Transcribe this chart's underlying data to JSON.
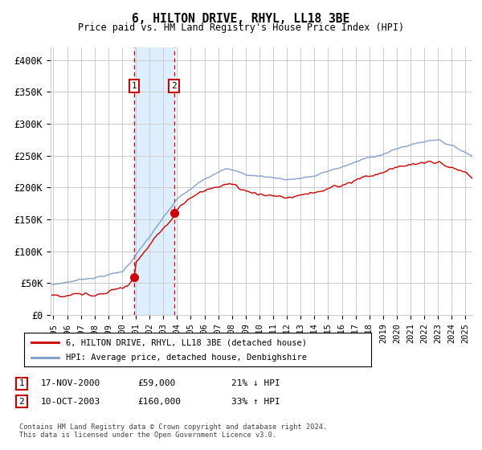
{
  "title": "6, HILTON DRIVE, RHYL, LL18 3BE",
  "subtitle": "Price paid vs. HM Land Registry's House Price Index (HPI)",
  "ylabel_ticks": [
    "£0",
    "£50K",
    "£100K",
    "£150K",
    "£200K",
    "£250K",
    "£300K",
    "£350K",
    "£400K"
  ],
  "ytick_values": [
    0,
    50000,
    100000,
    150000,
    200000,
    250000,
    300000,
    350000,
    400000
  ],
  "ylim": [
    0,
    420000
  ],
  "xlim_start": 1994.8,
  "xlim_end": 2025.5,
  "transaction1": {
    "date_num": 2000.88,
    "price": 59000,
    "label": "1",
    "date_str": "17-NOV-2000",
    "price_str": "£59,000",
    "note": "21% ↓ HPI"
  },
  "transaction2": {
    "date_num": 2003.78,
    "price": 160000,
    "label": "2",
    "date_str": "10-OCT-2003",
    "price_str": "£160,000",
    "note": "33% ↑ HPI"
  },
  "legend_line1": "6, HILTON DRIVE, RHYL, LL18 3BE (detached house)",
  "legend_line2": "HPI: Average price, detached house, Denbighshire",
  "footnote": "Contains HM Land Registry data © Crown copyright and database right 2024.\nThis data is licensed under the Open Government Licence v3.0.",
  "line_color_red": "#cc0000",
  "line_color_blue": "#7799cc",
  "shading_color": "#ddeeff",
  "grid_color": "#cccccc",
  "background_color": "#ffffff"
}
